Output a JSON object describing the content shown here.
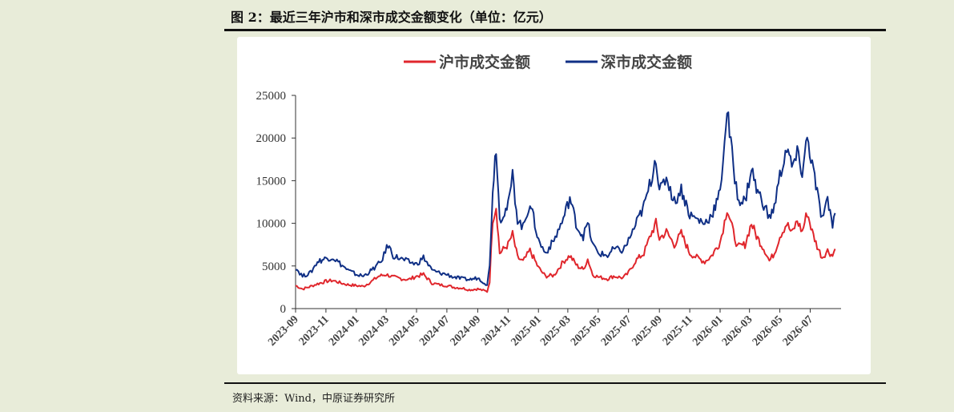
{
  "header": {
    "title": "图 2：最近三年沪市和深市成交金额变化（单位：亿元）"
  },
  "footer": {
    "source": "资料来源：Wind，中原证券研究所"
  },
  "colors": {
    "sh": "#e0262c",
    "sz": "#0f2f85",
    "panel": "#ffffff",
    "background": "#e8ecd9"
  },
  "chart_data": {
    "type": "line",
    "title": "",
    "xlabel": "",
    "ylabel": "",
    "ylim": [
      0,
      25000
    ],
    "yticks": [
      "0",
      "5000",
      "10000",
      "15000",
      "20000",
      "25000"
    ],
    "xlim": [
      "2023-09",
      "2026-08"
    ],
    "xticks": [
      "2023-09",
      "2023-11",
      "2024-01",
      "2024-03",
      "2024-05",
      "2024-07",
      "2024-09",
      "2024-11",
      "2025-01",
      "2025-03",
      "2025-05",
      "2025-07",
      "2025-09",
      "2025-11",
      "2026-01",
      "2026-03",
      "2026-05",
      "2026-07"
    ],
    "legend_position": "top-center",
    "grid": false,
    "series": [
      {
        "name": "沪市成交金额",
        "points": [
          [
            "2023-09-01",
            2700
          ],
          [
            "2023-09-15",
            2300
          ],
          [
            "2023-10-01",
            2600
          ],
          [
            "2023-10-15",
            2900
          ],
          [
            "2023-11-01",
            3200
          ],
          [
            "2023-11-15",
            3300
          ],
          [
            "2023-12-01",
            3000
          ],
          [
            "2023-12-15",
            2800
          ],
          [
            "2024-01-01",
            2700
          ],
          [
            "2024-01-15",
            2600
          ],
          [
            "2024-02-01",
            3200
          ],
          [
            "2024-02-15",
            3800
          ],
          [
            "2024-03-01",
            4000
          ],
          [
            "2024-03-15",
            3700
          ],
          [
            "2024-04-01",
            3500
          ],
          [
            "2024-04-15",
            3400
          ],
          [
            "2024-05-01",
            3800
          ],
          [
            "2024-05-15",
            4000
          ],
          [
            "2024-06-01",
            3000
          ],
          [
            "2024-06-15",
            2800
          ],
          [
            "2024-07-01",
            2700
          ],
          [
            "2024-07-15",
            2500
          ],
          [
            "2024-08-01",
            2400
          ],
          [
            "2024-08-15",
            2200
          ],
          [
            "2024-09-01",
            2300
          ],
          [
            "2024-09-20",
            2000
          ],
          [
            "2024-09-25",
            3200
          ],
          [
            "2024-10-01",
            10500
          ],
          [
            "2024-10-08",
            12000
          ],
          [
            "2024-10-15",
            6500
          ],
          [
            "2024-11-01",
            7500
          ],
          [
            "2024-11-10",
            8700
          ],
          [
            "2024-11-20",
            6000
          ],
          [
            "2024-12-01",
            5500
          ],
          [
            "2024-12-15",
            6800
          ],
          [
            "2025-01-01",
            4800
          ],
          [
            "2025-01-15",
            3800
          ],
          [
            "2025-02-01",
            3900
          ],
          [
            "2025-02-20",
            5500
          ],
          [
            "2025-03-05",
            6200
          ],
          [
            "2025-03-20",
            5000
          ],
          [
            "2025-04-01",
            4600
          ],
          [
            "2025-04-10",
            5800
          ],
          [
            "2025-04-20",
            4000
          ],
          [
            "2025-05-01",
            3700
          ],
          [
            "2025-05-20",
            3500
          ],
          [
            "2025-06-01",
            3800
          ],
          [
            "2025-06-20",
            3600
          ],
          [
            "2025-07-01",
            4200
          ],
          [
            "2025-07-15",
            5600
          ],
          [
            "2025-08-01",
            6500
          ],
          [
            "2025-08-15",
            8700
          ],
          [
            "2025-08-25",
            10000
          ],
          [
            "2025-09-01",
            8200
          ],
          [
            "2025-09-15",
            9000
          ],
          [
            "2025-10-01",
            7500
          ],
          [
            "2025-10-15",
            8800
          ],
          [
            "2025-11-01",
            6500
          ],
          [
            "2025-11-15",
            6000
          ],
          [
            "2025-12-01",
            5500
          ],
          [
            "2025-12-15",
            6200
          ],
          [
            "2026-01-01",
            7800
          ],
          [
            "2026-01-10",
            10200
          ],
          [
            "2026-01-15",
            11800
          ],
          [
            "2026-01-25",
            9500
          ],
          [
            "2026-02-05",
            7200
          ],
          [
            "2026-02-20",
            7500
          ],
          [
            "2026-03-05",
            10000
          ],
          [
            "2026-03-15",
            8500
          ],
          [
            "2026-04-01",
            6800
          ],
          [
            "2026-04-10",
            5600
          ],
          [
            "2026-04-20",
            6500
          ],
          [
            "2026-05-01",
            8500
          ],
          [
            "2026-05-15",
            10000
          ],
          [
            "2026-05-25",
            8800
          ],
          [
            "2026-06-05",
            10300
          ],
          [
            "2026-06-15",
            9000
          ],
          [
            "2026-06-25",
            11300
          ],
          [
            "2026-07-05",
            9000
          ],
          [
            "2026-07-15",
            7300
          ],
          [
            "2026-07-25",
            6000
          ],
          [
            "2026-08-05",
            6800
          ],
          [
            "2026-08-15",
            6200
          ],
          [
            "2026-08-20",
            7000
          ]
        ]
      },
      {
        "name": "深市成交金额",
        "points": [
          [
            "2023-09-01",
            4800
          ],
          [
            "2023-09-15",
            3800
          ],
          [
            "2023-10-01",
            4200
          ],
          [
            "2023-10-15",
            5500
          ],
          [
            "2023-11-01",
            5900
          ],
          [
            "2023-11-15",
            6000
          ],
          [
            "2023-12-01",
            5200
          ],
          [
            "2023-12-15",
            4500
          ],
          [
            "2024-01-01",
            4000
          ],
          [
            "2024-01-15",
            3800
          ],
          [
            "2024-02-01",
            4500
          ],
          [
            "2024-02-20",
            5500
          ],
          [
            "2024-03-05",
            7500
          ],
          [
            "2024-03-15",
            6200
          ],
          [
            "2024-04-01",
            5800
          ],
          [
            "2024-04-15",
            5500
          ],
          [
            "2024-05-01",
            5200
          ],
          [
            "2024-05-15",
            6000
          ],
          [
            "2024-06-01",
            4500
          ],
          [
            "2024-06-15",
            4200
          ],
          [
            "2024-07-01",
            4000
          ],
          [
            "2024-07-15",
            3700
          ],
          [
            "2024-08-01",
            3500
          ],
          [
            "2024-08-15",
            3400
          ],
          [
            "2024-09-01",
            3600
          ],
          [
            "2024-09-20",
            2800
          ],
          [
            "2024-09-25",
            5000
          ],
          [
            "2024-10-01",
            14000
          ],
          [
            "2024-10-08",
            19200
          ],
          [
            "2024-10-15",
            10500
          ],
          [
            "2024-11-01",
            12000
          ],
          [
            "2024-11-10",
            15500
          ],
          [
            "2024-11-20",
            10500
          ],
          [
            "2024-12-01",
            9500
          ],
          [
            "2024-12-15",
            12500
          ],
          [
            "2025-01-01",
            8000
          ],
          [
            "2025-01-15",
            6500
          ],
          [
            "2025-02-01",
            8000
          ],
          [
            "2025-02-20",
            10500
          ],
          [
            "2025-03-05",
            13000
          ],
          [
            "2025-03-20",
            9500
          ],
          [
            "2025-04-01",
            8500
          ],
          [
            "2025-04-10",
            10000
          ],
          [
            "2025-04-20",
            7500
          ],
          [
            "2025-05-01",
            6500
          ],
          [
            "2025-05-20",
            6200
          ],
          [
            "2025-06-01",
            7000
          ],
          [
            "2025-06-20",
            6800
          ],
          [
            "2025-07-01",
            8000
          ],
          [
            "2025-07-15",
            9800
          ],
          [
            "2025-08-01",
            12000
          ],
          [
            "2025-08-15",
            15000
          ],
          [
            "2025-08-25",
            18000
          ],
          [
            "2025-09-01",
            13500
          ],
          [
            "2025-09-15",
            15500
          ],
          [
            "2025-10-01",
            12500
          ],
          [
            "2025-10-15",
            14000
          ],
          [
            "2025-11-01",
            11000
          ],
          [
            "2025-11-15",
            10500
          ],
          [
            "2025-12-01",
            10000
          ],
          [
            "2025-12-15",
            11000
          ],
          [
            "2026-01-01",
            13500
          ],
          [
            "2026-01-10",
            20000
          ],
          [
            "2026-01-15",
            23200
          ],
          [
            "2026-01-25",
            18000
          ],
          [
            "2026-02-05",
            13000
          ],
          [
            "2026-02-20",
            12500
          ],
          [
            "2026-03-05",
            16500
          ],
          [
            "2026-03-15",
            14000
          ],
          [
            "2026-04-01",
            12000
          ],
          [
            "2026-04-10",
            10500
          ],
          [
            "2026-04-20",
            12000
          ],
          [
            "2026-05-01",
            15500
          ],
          [
            "2026-05-15",
            19000
          ],
          [
            "2026-05-25",
            16500
          ],
          [
            "2026-06-05",
            18000
          ],
          [
            "2026-06-15",
            16000
          ],
          [
            "2026-06-25",
            20000
          ],
          [
            "2026-07-05",
            17000
          ],
          [
            "2026-07-15",
            13500
          ],
          [
            "2026-07-25",
            10500
          ],
          [
            "2026-08-05",
            12500
          ],
          [
            "2026-08-15",
            10000
          ],
          [
            "2026-08-20",
            11200
          ]
        ]
      }
    ]
  }
}
